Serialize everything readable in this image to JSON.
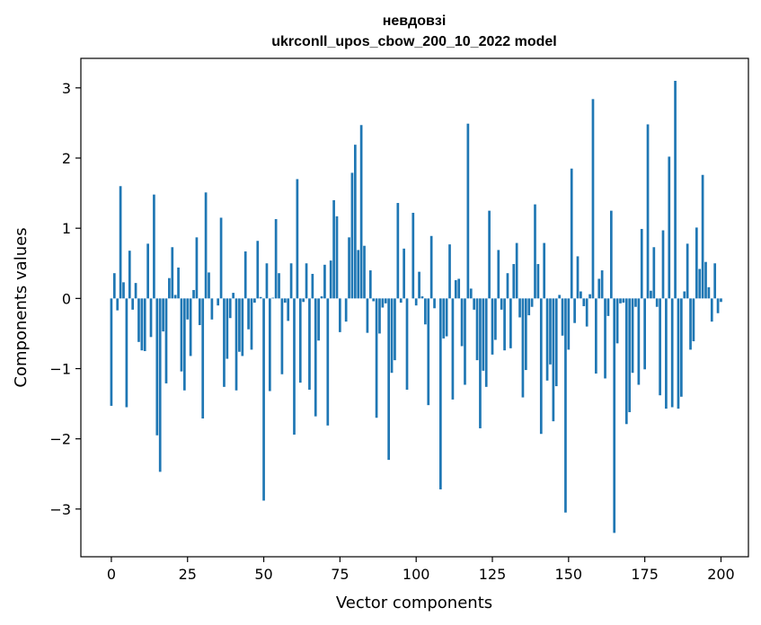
{
  "chart_data": {
    "type": "bar",
    "title": "невдовзі",
    "subtitle": "ukrconll_upos_cbow_200_10_2022 model",
    "xlabel": "Vector components",
    "ylabel": "Components values",
    "xlim": [
      -10,
      209
    ],
    "ylim": [
      -3.68,
      3.42
    ],
    "xticks": [
      0,
      25,
      50,
      75,
      100,
      125,
      150,
      175,
      200
    ],
    "yticks": [
      -3,
      -2,
      -1,
      0,
      1,
      2,
      3
    ],
    "grid": false,
    "legend": "none",
    "bar_color": "#1f77b4",
    "values": [
      -1.53,
      0.36,
      -0.17,
      1.6,
      0.23,
      -1.55,
      0.68,
      -0.16,
      0.22,
      -0.62,
      -0.74,
      -0.75,
      0.78,
      -0.55,
      1.48,
      -1.95,
      -2.47,
      -0.47,
      -1.21,
      0.29,
      0.73,
      0.05,
      0.44,
      -1.04,
      -1.31,
      -0.3,
      -0.82,
      0.12,
      0.87,
      -0.38,
      -1.71,
      1.51,
      0.37,
      -0.3,
      0.0,
      -0.1,
      1.15,
      -1.26,
      -0.86,
      -0.28,
      0.08,
      -1.31,
      -0.76,
      -0.82,
      0.67,
      -0.44,
      -0.73,
      -0.06,
      0.82,
      0.02,
      -2.88,
      0.5,
      -1.32,
      0.01,
      1.13,
      0.36,
      -1.08,
      -0.06,
      -0.32,
      0.5,
      -1.94,
      1.7,
      -1.2,
      -0.05,
      0.5,
      -1.3,
      0.35,
      -1.68,
      -0.6,
      0.03,
      0.48,
      -1.81,
      0.54,
      1.4,
      1.17,
      -0.48,
      0.0,
      -0.33,
      0.87,
      1.79,
      2.19,
      0.69,
      2.47,
      0.75,
      -0.49,
      0.4,
      -0.04,
      -1.7,
      -0.5,
      -0.13,
      -0.07,
      -2.3,
      -1.06,
      -0.88,
      1.36,
      -0.06,
      0.71,
      -1.3,
      0.0,
      1.22,
      -0.1,
      0.38,
      0.03,
      -0.37,
      -1.52,
      0.89,
      -0.14,
      0.0,
      -2.72,
      -0.57,
      -0.54,
      0.77,
      -1.44,
      0.26,
      0.28,
      -0.68,
      -1.23,
      2.49,
      0.14,
      -0.16,
      -0.88,
      -1.85,
      -1.03,
      -1.26,
      1.25,
      -0.8,
      -0.59,
      0.69,
      -0.16,
      -0.74,
      0.36,
      -0.71,
      0.49,
      0.79,
      -0.27,
      -1.41,
      -1.02,
      -0.24,
      -0.12,
      1.34,
      0.49,
      -1.93,
      0.79,
      -1.17,
      -0.94,
      -1.75,
      -1.25,
      0.05,
      -0.53,
      -3.05,
      -0.73,
      1.85,
      -0.35,
      0.6,
      0.1,
      -0.11,
      -0.4,
      0.06,
      2.84,
      -1.07,
      0.28,
      0.4,
      -1.14,
      -0.25,
      1.25,
      -3.34,
      -0.64,
      -0.07,
      -0.06,
      -1.79,
      -1.62,
      -1.06,
      -0.12,
      -1.23,
      0.99,
      -1.01,
      2.48,
      0.11,
      0.73,
      -0.12,
      -1.38,
      0.97,
      -1.57,
      2.02,
      -1.55,
      3.1,
      -1.57,
      -1.4,
      0.1,
      0.78,
      -0.73,
      -0.61,
      1.01,
      0.42,
      1.76,
      0.52,
      0.16,
      -0.33,
      0.5,
      -0.21,
      -0.05
    ]
  }
}
